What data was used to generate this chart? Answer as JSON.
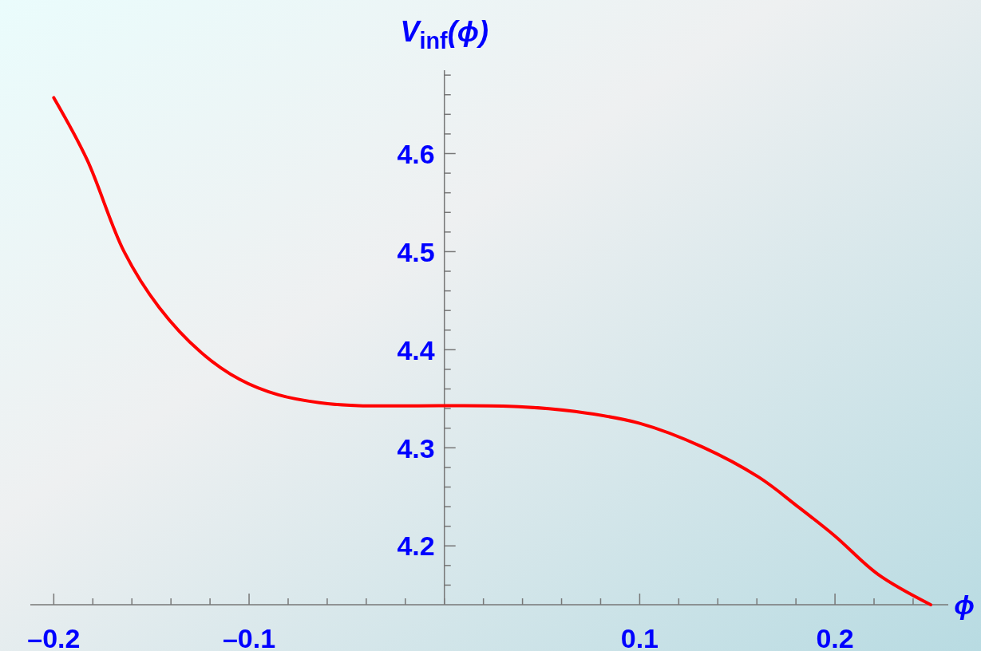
{
  "chart_data": {
    "type": "line",
    "xlabel": "ϕ",
    "ylabel": "V$_{inf}$(ϕ)",
    "xlim": [
      -0.212,
      0.258
    ],
    "ylim": [
      4.14,
      4.685
    ],
    "xticks": [
      {
        "value": -0.2,
        "label": "–0.2"
      },
      {
        "value": -0.18,
        "label": null
      },
      {
        "value": -0.16,
        "label": null
      },
      {
        "value": -0.14,
        "label": null
      },
      {
        "value": -0.12,
        "label": null
      },
      {
        "value": -0.1,
        "label": "–0.1"
      },
      {
        "value": -0.08,
        "label": null
      },
      {
        "value": -0.06,
        "label": null
      },
      {
        "value": -0.04,
        "label": null
      },
      {
        "value": -0.02,
        "label": null
      },
      {
        "value": 0,
        "label": null
      },
      {
        "value": 0.02,
        "label": null
      },
      {
        "value": 0.04,
        "label": null
      },
      {
        "value": 0.06,
        "label": null
      },
      {
        "value": 0.08,
        "label": null
      },
      0.1,
      {
        "value": 0.12,
        "label": null
      },
      {
        "value": 0.14,
        "label": null
      },
      {
        "value": 0.16,
        "label": null
      },
      {
        "value": 0.18,
        "label": null
      },
      0.2,
      {
        "value": 0.22,
        "label": null
      },
      {
        "value": 0.24,
        "label": null
      }
    ],
    "yticks": [
      {
        "value": 4.16,
        "label": null
      },
      {
        "value": 4.18,
        "label": null
      },
      4.2,
      {
        "value": 4.22,
        "label": null
      },
      {
        "value": 4.24,
        "label": null
      },
      {
        "value": 4.26,
        "label": null
      },
      {
        "value": 4.28,
        "label": null
      },
      4.3,
      {
        "value": 4.32,
        "label": null
      },
      {
        "value": 4.34,
        "label": null
      },
      {
        "value": 4.36,
        "label": null
      },
      {
        "value": 4.38,
        "label": null
      },
      4.4,
      {
        "value": 4.42,
        "label": null
      },
      {
        "value": 4.44,
        "label": null
      },
      {
        "value": 4.46,
        "label": null
      },
      {
        "value": 4.48,
        "label": null
      },
      4.5,
      {
        "value": 4.52,
        "label": null
      },
      {
        "value": 4.54,
        "label": null
      },
      {
        "value": 4.56,
        "label": null
      },
      {
        "value": 4.58,
        "label": null
      },
      4.6,
      {
        "value": 4.62,
        "label": null
      },
      {
        "value": 4.64,
        "label": null
      },
      {
        "value": 4.66,
        "label": null
      },
      {
        "value": 4.68,
        "label": null
      }
    ],
    "grid": false,
    "series": [
      {
        "color": "#ff0000",
        "line_style": "solid",
        "x": [
          -0.2,
          -0.183,
          -0.164,
          -0.146,
          -0.125,
          -0.105,
          -0.085,
          -0.064,
          -0.044,
          0,
          0.038,
          0.067,
          0.1,
          0.132,
          0.161,
          0.181,
          0.2,
          0.222,
          0.249
        ],
        "values": [
          4.657,
          4.594,
          4.5,
          4.443,
          4.398,
          4.37,
          4.354,
          4.346,
          4.343,
          4.343,
          4.342,
          4.337,
          4.325,
          4.301,
          4.27,
          4.24,
          4.21,
          4.171,
          4.14
        ]
      }
    ]
  }
}
